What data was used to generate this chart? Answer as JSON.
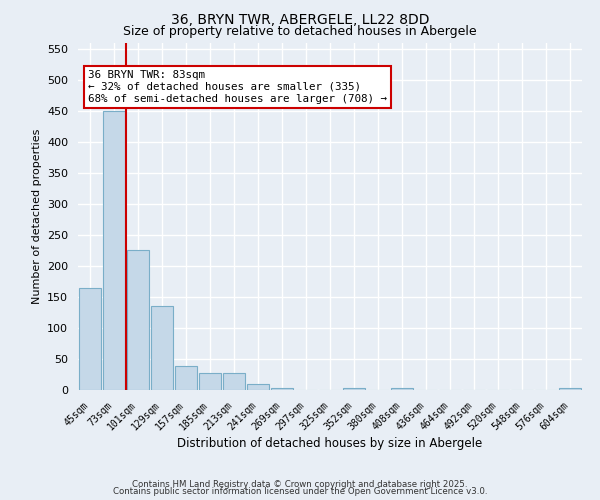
{
  "title1": "36, BRYN TWR, ABERGELE, LL22 8DD",
  "title2": "Size of property relative to detached houses in Abergele",
  "xlabel": "Distribution of detached houses by size in Abergele",
  "ylabel": "Number of detached properties",
  "categories": [
    "45sqm",
    "73sqm",
    "101sqm",
    "129sqm",
    "157sqm",
    "185sqm",
    "213sqm",
    "241sqm",
    "269sqm",
    "297sqm",
    "325sqm",
    "352sqm",
    "380sqm",
    "408sqm",
    "436sqm",
    "464sqm",
    "492sqm",
    "520sqm",
    "548sqm",
    "576sqm",
    "604sqm"
  ],
  "values": [
    165,
    450,
    225,
    135,
    38,
    27,
    27,
    9,
    4,
    0,
    0,
    3,
    0,
    3,
    0,
    0,
    0,
    0,
    0,
    0,
    3
  ],
  "bar_color": "#c5d8e8",
  "bar_edge_color": "#7aaec8",
  "background_color": "#e8eef5",
  "grid_color": "#ffffff",
  "vline_color": "#cc0000",
  "annotation_text": "36 BRYN TWR: 83sqm\n← 32% of detached houses are smaller (335)\n68% of semi-detached houses are larger (708) →",
  "annotation_box_color": "#ffffff",
  "annotation_box_edge": "#cc0000",
  "ylim": [
    0,
    560
  ],
  "yticks": [
    0,
    50,
    100,
    150,
    200,
    250,
    300,
    350,
    400,
    450,
    500,
    550
  ],
  "footer1": "Contains HM Land Registry data © Crown copyright and database right 2025.",
  "footer2": "Contains public sector information licensed under the Open Government Licence v3.0."
}
